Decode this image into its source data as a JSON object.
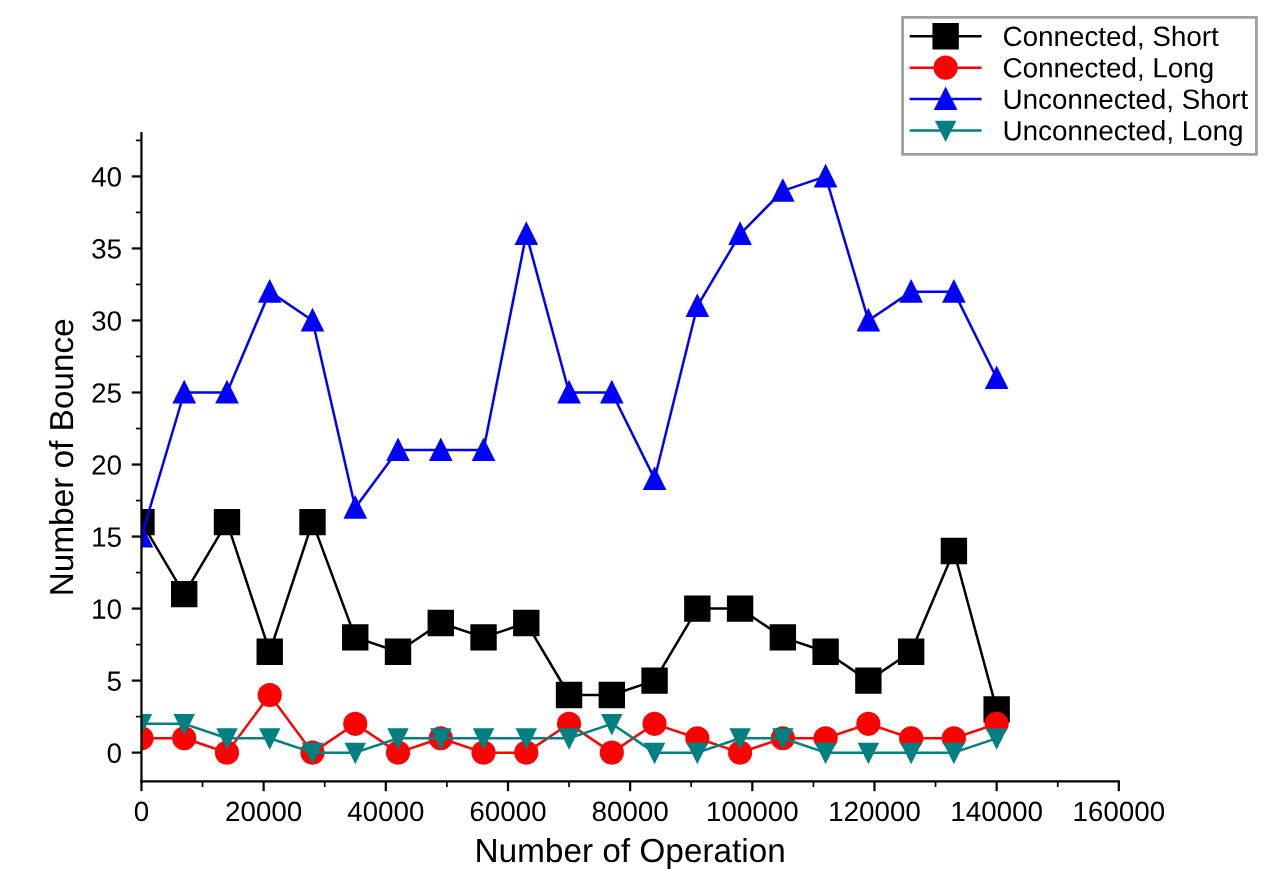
{
  "chart_data": {
    "type": "line",
    "xlabel": "Number of Operation",
    "ylabel": "Number of Bounce",
    "x": [
      0,
      7000,
      14000,
      21000,
      28000,
      35000,
      42000,
      49000,
      56000,
      63000,
      70000,
      77000,
      84000,
      91000,
      98000,
      105000,
      112000,
      119000,
      126000,
      133000,
      140000
    ],
    "series": [
      {
        "name": "Connected, Short",
        "color": "#000000",
        "marker": "square",
        "values": [
          16,
          11,
          16,
          7,
          16,
          8,
          7,
          9,
          8,
          9,
          4,
          4,
          5,
          10,
          10,
          8,
          7,
          5,
          7,
          14,
          3
        ]
      },
      {
        "name": "Connected, Long",
        "color": "#ff0000",
        "marker": "circle",
        "values": [
          1,
          1,
          0,
          4,
          0,
          2,
          0,
          1,
          0,
          0,
          2,
          0,
          2,
          1,
          0,
          1,
          1,
          2,
          1,
          1,
          2
        ]
      },
      {
        "name": "Unconnected, Short",
        "color": "#0000ff",
        "marker": "triangle",
        "values": [
          15,
          25,
          25,
          32,
          30,
          17,
          21,
          21,
          21,
          36,
          25,
          25,
          19,
          31,
          36,
          39,
          40,
          30,
          32,
          32,
          26
        ]
      },
      {
        "name": "Unconnected, Long",
        "color": "#008080",
        "marker": "triangle_down",
        "values": [
          2,
          2,
          1,
          1,
          0,
          0,
          1,
          1,
          1,
          1,
          1,
          2,
          0,
          0,
          1,
          1,
          0,
          0,
          0,
          0,
          1
        ]
      }
    ],
    "xlim": [
      0,
      160000
    ],
    "xticks": [
      0,
      20000,
      40000,
      60000,
      80000,
      100000,
      120000,
      140000,
      160000
    ],
    "ylim": [
      -2,
      43
    ],
    "yticks": [
      0,
      5,
      10,
      15,
      20,
      25,
      30,
      35,
      40
    ],
    "grid": false,
    "legend": "top right",
    "line_style": "solid"
  }
}
